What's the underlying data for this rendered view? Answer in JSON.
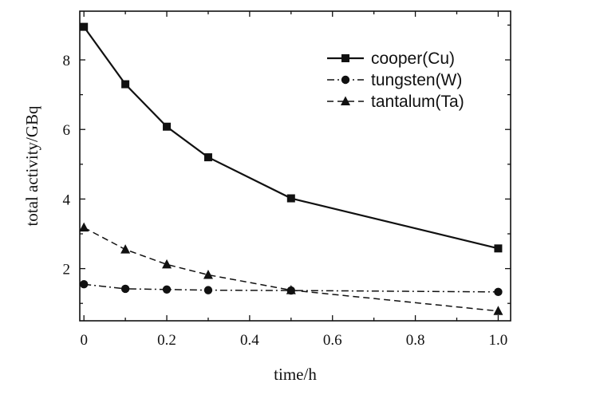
{
  "chart_data": {
    "type": "line",
    "xlabel": "time/h",
    "ylabel": "total activity/GBq",
    "xlim": [
      -0.01,
      1.03
    ],
    "ylim": [
      0.5,
      9.4
    ],
    "xticks": [
      0,
      0.2,
      0.4,
      0.6,
      0.8,
      1.0
    ],
    "xtick_labels": [
      "0",
      "0.2",
      "0.4",
      "0.6",
      "0.8",
      "1.0"
    ],
    "yticks": [
      2,
      4,
      6,
      8
    ],
    "ytick_labels": [
      "2",
      "4",
      "6",
      "8"
    ],
    "grid": false,
    "legend": "top-right",
    "series": [
      {
        "name": "cooper(Cu)",
        "marker": "square",
        "line_style": "solid",
        "x": [
          0,
          0.1,
          0.2,
          0.3,
          0.5,
          1.0
        ],
        "y": [
          8.95,
          7.3,
          6.08,
          5.2,
          4.02,
          2.58
        ]
      },
      {
        "name": "tungsten(W)",
        "marker": "circle",
        "line_style": "dash-dot",
        "x": [
          0,
          0.1,
          0.2,
          0.3,
          0.5,
          1.0
        ],
        "y": [
          1.55,
          1.42,
          1.4,
          1.38,
          1.37,
          1.33
        ]
      },
      {
        "name": "tantalum(Ta)",
        "marker": "triangle",
        "line_style": "dashed",
        "x": [
          0,
          0.1,
          0.2,
          0.3,
          0.5,
          1.0
        ],
        "y": [
          3.18,
          2.55,
          2.12,
          1.82,
          1.38,
          0.78
        ]
      }
    ]
  }
}
